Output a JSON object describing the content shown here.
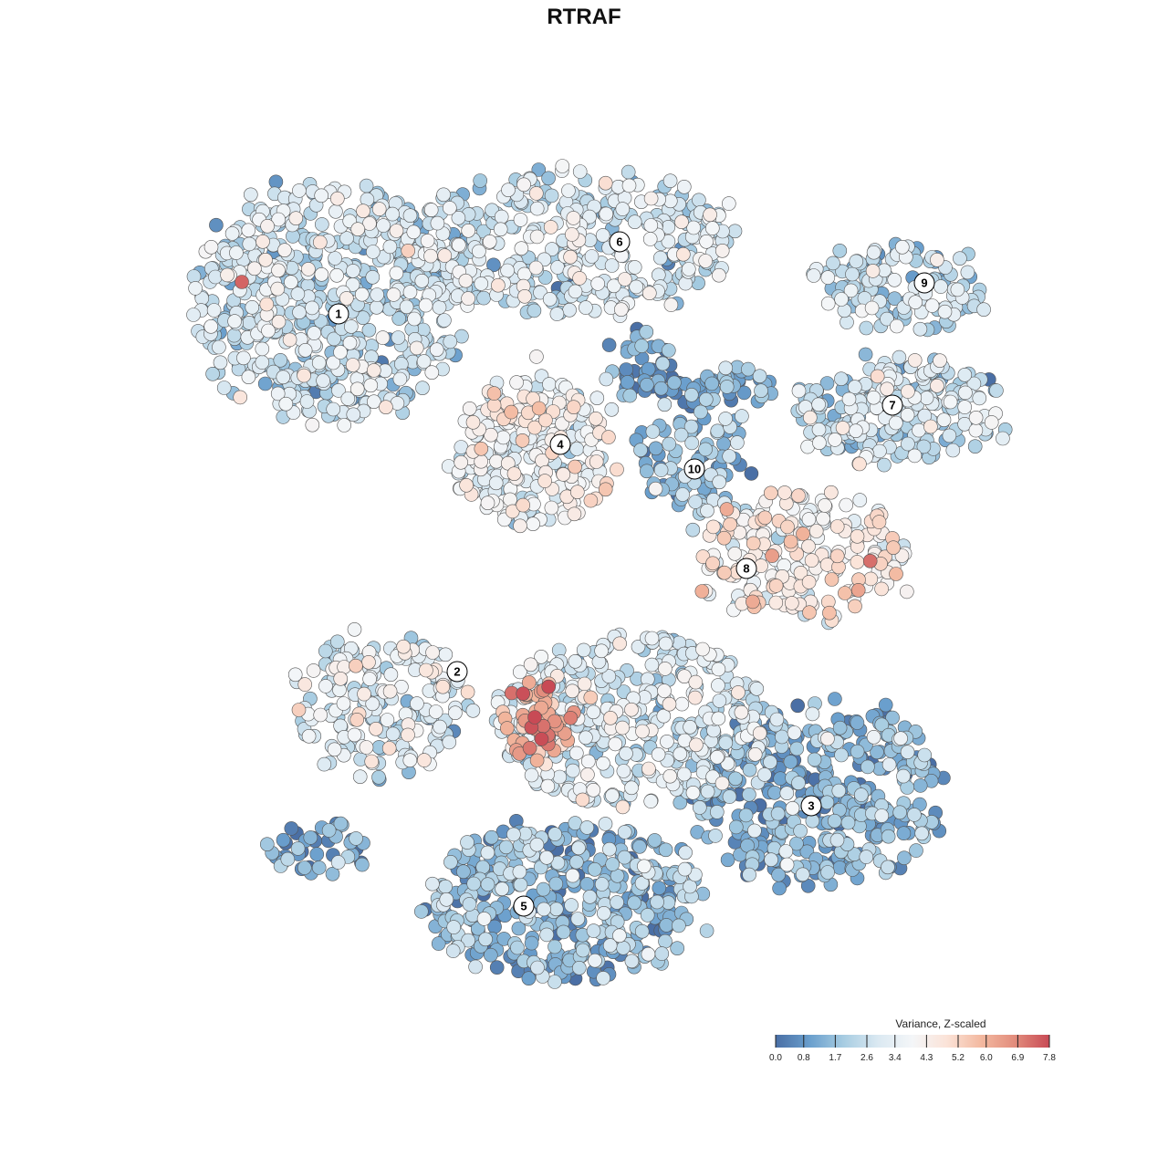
{
  "chart_data": {
    "type": "scatter",
    "title": "RTRAF",
    "xlabel": "",
    "ylabel": "",
    "grid": false,
    "point_colormap": [
      "#4a6fa5",
      "#6a9fcd",
      "#a8cde2",
      "#dbe9f2",
      "#f4f6f8",
      "#fbe3d8",
      "#f3b9a0",
      "#e28c7c",
      "#c84a55"
    ],
    "clusters": [
      {
        "label": "1",
        "value_mean": 2.6,
        "spread": "wide"
      },
      {
        "label": "2",
        "value_mean": 3.0,
        "spread": "medium"
      },
      {
        "label": "3",
        "value_mean": 1.4,
        "spread": "wide"
      },
      {
        "label": "4",
        "value_mean": 3.6,
        "spread": "medium"
      },
      {
        "label": "5",
        "value_mean": 1.6,
        "spread": "wide"
      },
      {
        "label": "6",
        "value_mean": 2.8,
        "spread": "wide"
      },
      {
        "label": "7",
        "value_mean": 2.7,
        "spread": "medium"
      },
      {
        "label": "8",
        "value_mean": 4.2,
        "spread": "medium"
      },
      {
        "label": "9",
        "value_mean": 2.4,
        "spread": "medium"
      },
      {
        "label": "10",
        "value_mean": 1.6,
        "spread": "small"
      }
    ],
    "hotspots": [
      {
        "near_cluster": "2",
        "value": 7.8
      },
      {
        "near_cluster": "1",
        "value": 7.4
      },
      {
        "near_cluster": "8",
        "value": 6.0
      }
    ],
    "legend": {
      "title": "Variance, Z-scaled",
      "placement": "bottom-right",
      "ticks": [
        "0.0",
        "0.8",
        "1.7",
        "2.6",
        "3.4",
        "4.3",
        "5.2",
        "6.0",
        "6.9",
        "7.8"
      ],
      "range": [
        0.0,
        7.8
      ],
      "colors": [
        "#4a6fa5",
        "#6a9fcd",
        "#a8cde2",
        "#dbe9f2",
        "#f4f6f8",
        "#fbe3d8",
        "#f3b9a0",
        "#e28c7c",
        "#c84a55"
      ]
    }
  }
}
